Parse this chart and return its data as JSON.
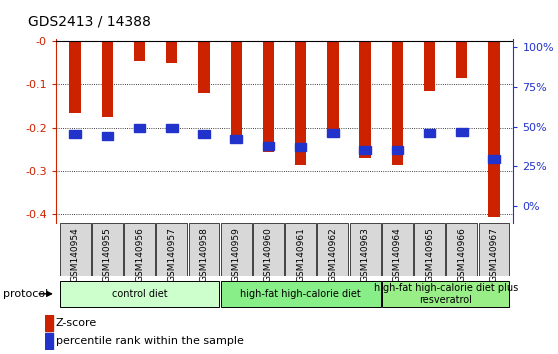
{
  "title": "GDS2413 / 14388",
  "samples": [
    "GSM140954",
    "GSM140955",
    "GSM140956",
    "GSM140957",
    "GSM140958",
    "GSM140959",
    "GSM140960",
    "GSM140961",
    "GSM140962",
    "GSM140963",
    "GSM140964",
    "GSM140965",
    "GSM140966",
    "GSM140967"
  ],
  "zscore": [
    -0.165,
    -0.175,
    -0.045,
    -0.05,
    -0.12,
    -0.235,
    -0.255,
    -0.285,
    -0.205,
    -0.27,
    -0.285,
    -0.115,
    -0.085,
    -0.405
  ],
  "percentile": [
    0.455,
    0.44,
    0.49,
    0.49,
    0.455,
    0.42,
    0.38,
    0.375,
    0.46,
    0.355,
    0.355,
    0.46,
    0.465,
    0.295
  ],
  "bar_color": "#cc2200",
  "blue_color": "#2233cc",
  "ylim_left": [
    -0.42,
    0.005
  ],
  "ylim_right": [
    -0.105,
    1.05
  ],
  "yticks_left": [
    -0.4,
    -0.3,
    -0.2,
    -0.1,
    0.0
  ],
  "ytick_labels_left": [
    "-0.4",
    "-0.3",
    "-0.2",
    "-0.1",
    "-0"
  ],
  "yticks_right_vals": [
    0.0,
    0.25,
    0.5,
    0.75,
    1.0
  ],
  "ytick_labels_right": [
    "0%",
    "25%",
    "50%",
    "75%",
    "100%"
  ],
  "groups": [
    {
      "label": "control diet",
      "start": 0,
      "end": 4,
      "color": "#ccffcc"
    },
    {
      "label": "high-fat high-calorie diet",
      "start": 5,
      "end": 9,
      "color": "#88ee88"
    },
    {
      "label": "high-fat high-calorie diet plus\nresveratrol",
      "start": 10,
      "end": 13,
      "color": "#99ee88"
    }
  ],
  "legend_zscore_label": "Z-score",
  "legend_pct_label": "percentile rank within the sample",
  "protocol_label": "protocol"
}
